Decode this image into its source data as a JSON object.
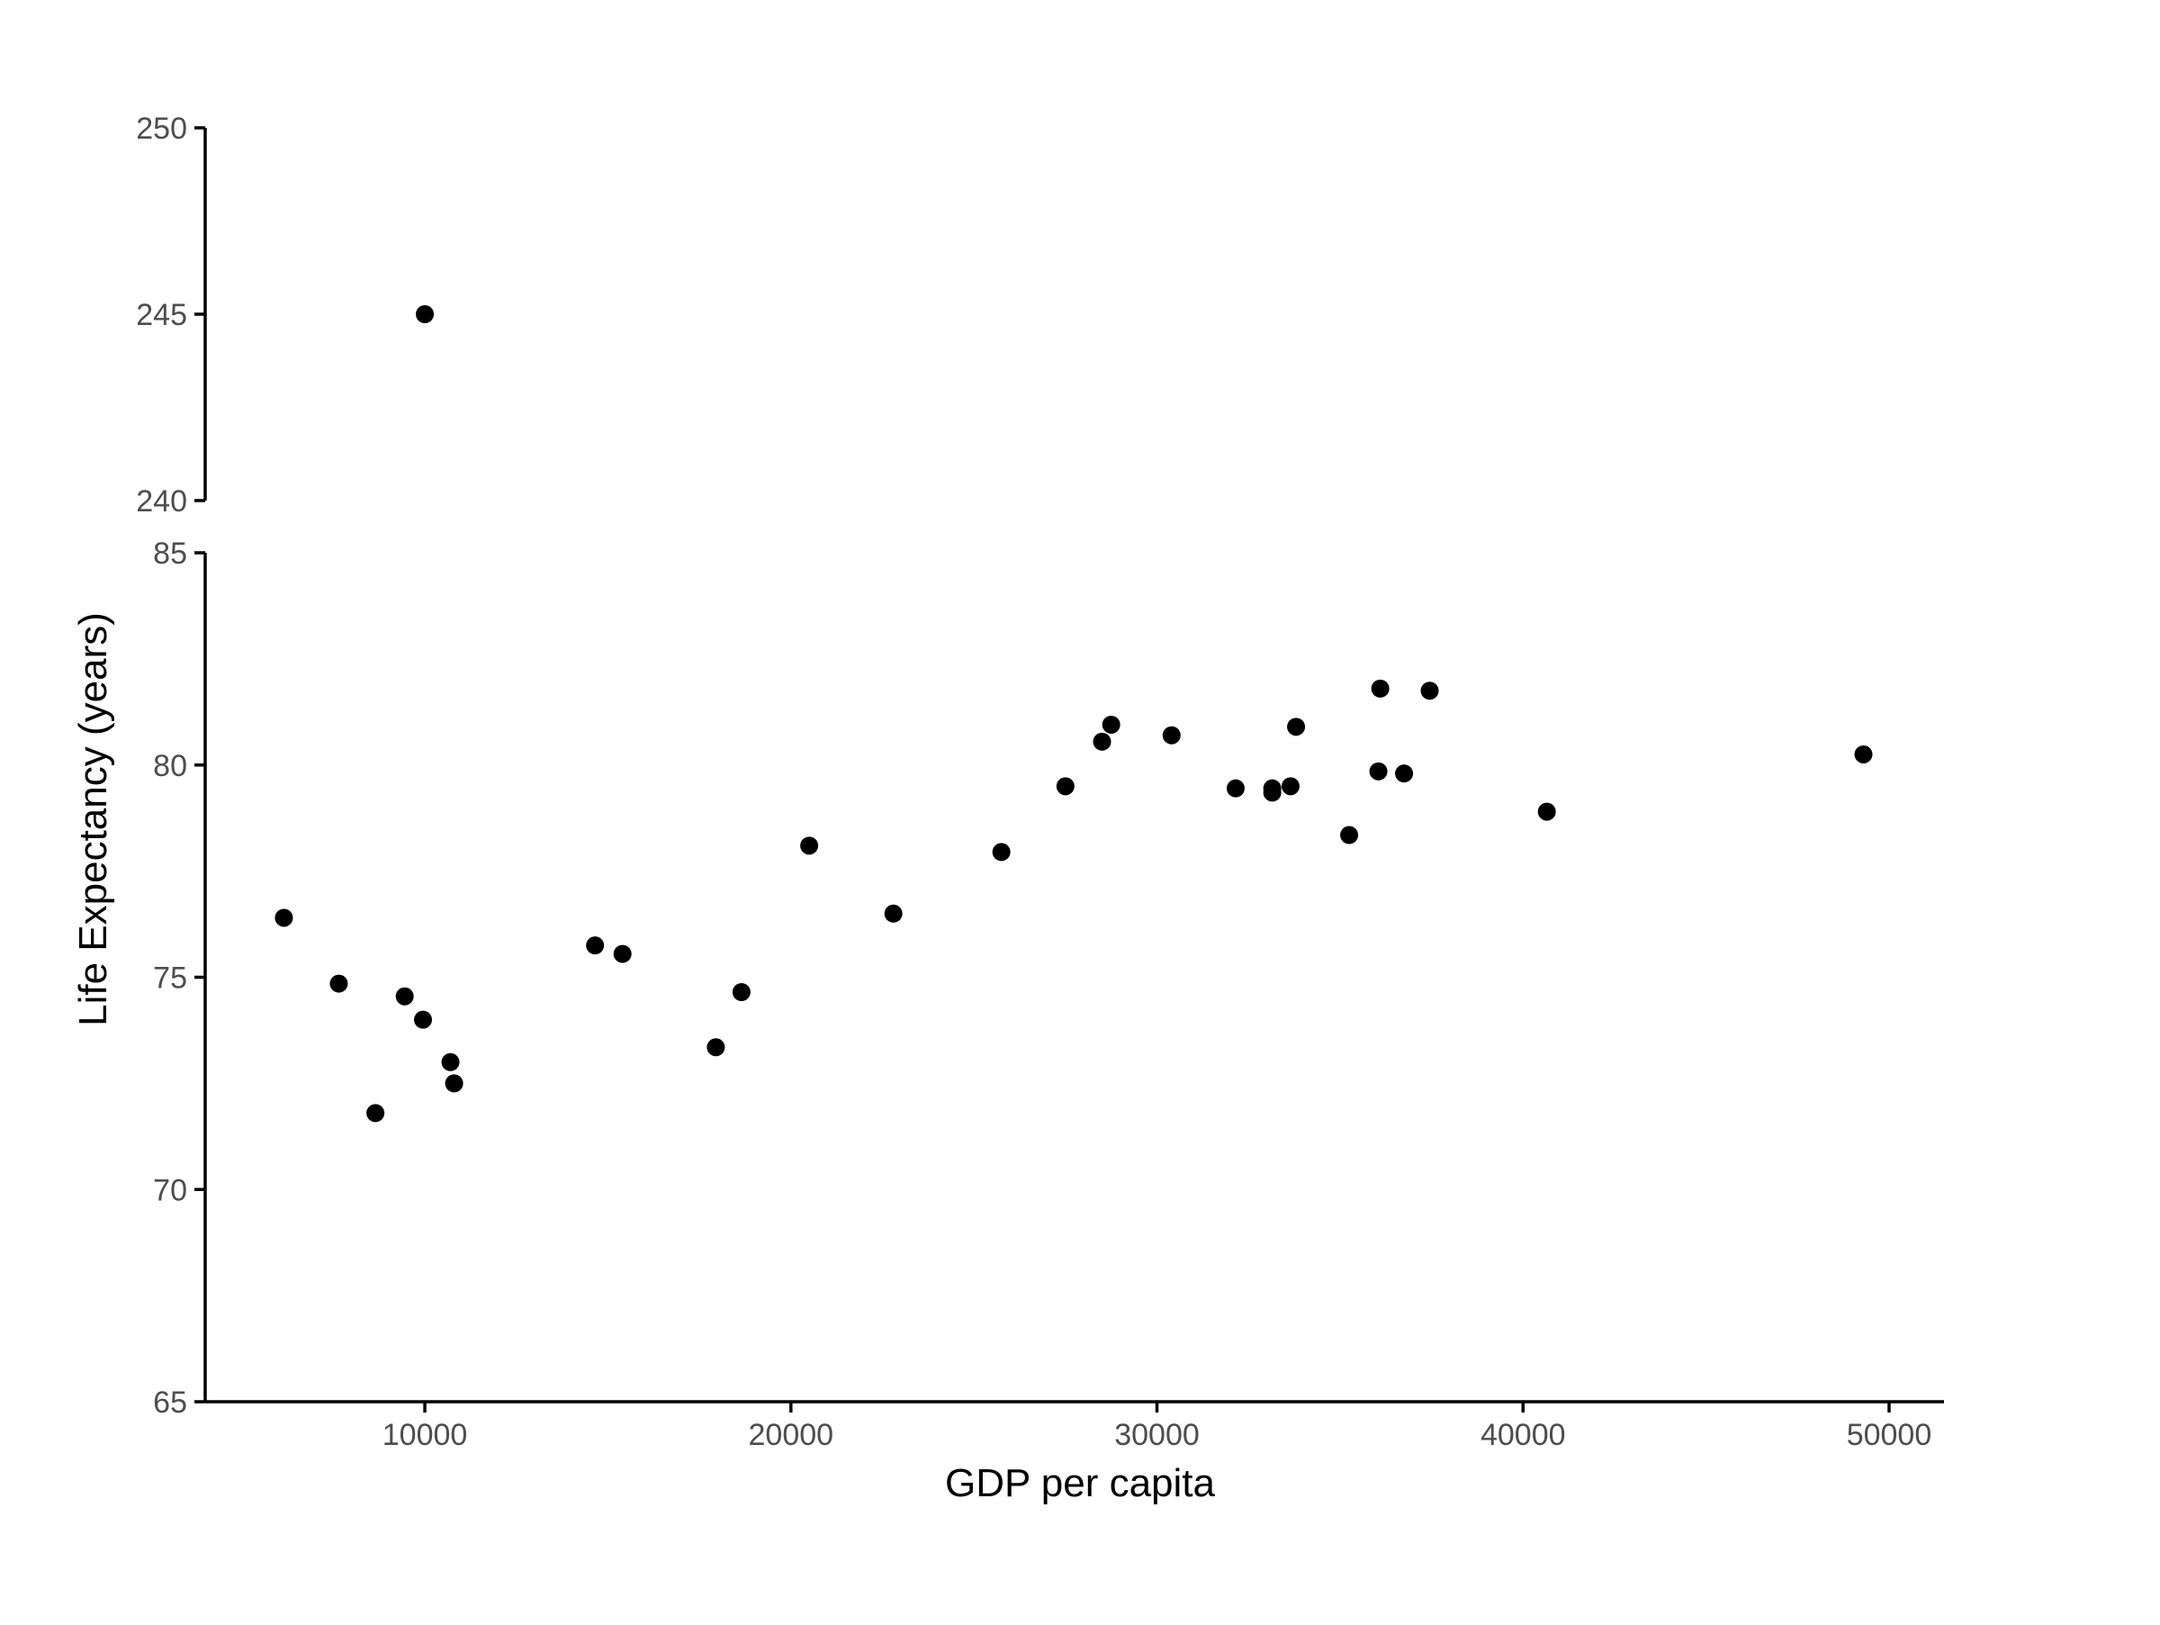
{
  "chart_data": {
    "type": "scatter",
    "title": "",
    "xlabel": "GDP per capita",
    "ylabel": "Life Expectancy (years)",
    "xlim": [
      4000,
      51500
    ],
    "x_ticks": [
      10000,
      20000,
      30000,
      40000,
      50000
    ],
    "y_axis_break": true,
    "upper_panel": {
      "ylim": [
        240,
        250
      ],
      "y_ticks": [
        240,
        245,
        250
      ]
    },
    "lower_panel": {
      "ylim": [
        65,
        85
      ],
      "y_ticks": [
        65,
        70,
        75,
        80,
        85
      ]
    },
    "grid": false,
    "legend": "none",
    "point_color": "#000000",
    "points": [
      {
        "x": 10000,
        "y": 245.0
      },
      {
        "x": 6150,
        "y": 76.4
      },
      {
        "x": 7650,
        "y": 74.85
      },
      {
        "x": 8650,
        "y": 71.8
      },
      {
        "x": 9450,
        "y": 74.55
      },
      {
        "x": 9950,
        "y": 74.0
      },
      {
        "x": 10700,
        "y": 73.0
      },
      {
        "x": 10800,
        "y": 72.5
      },
      {
        "x": 14650,
        "y": 75.75
      },
      {
        "x": 15400,
        "y": 75.55
      },
      {
        "x": 17950,
        "y": 73.35
      },
      {
        "x": 18650,
        "y": 74.65
      },
      {
        "x": 20500,
        "y": 78.1
      },
      {
        "x": 22800,
        "y": 76.5
      },
      {
        "x": 25750,
        "y": 77.95
      },
      {
        "x": 27500,
        "y": 79.5
      },
      {
        "x": 28500,
        "y": 80.55
      },
      {
        "x": 28750,
        "y": 80.95
      },
      {
        "x": 30400,
        "y": 80.7
      },
      {
        "x": 32150,
        "y": 79.45
      },
      {
        "x": 33150,
        "y": 79.35
      },
      {
        "x": 33150,
        "y": 79.45
      },
      {
        "x": 33650,
        "y": 79.5
      },
      {
        "x": 33800,
        "y": 80.9
      },
      {
        "x": 35250,
        "y": 78.35
      },
      {
        "x": 36050,
        "y": 79.85
      },
      {
        "x": 36100,
        "y": 81.8
      },
      {
        "x": 36750,
        "y": 79.8
      },
      {
        "x": 37450,
        "y": 81.75
      },
      {
        "x": 40650,
        "y": 78.9
      },
      {
        "x": 49300,
        "y": 80.25
      }
    ]
  }
}
